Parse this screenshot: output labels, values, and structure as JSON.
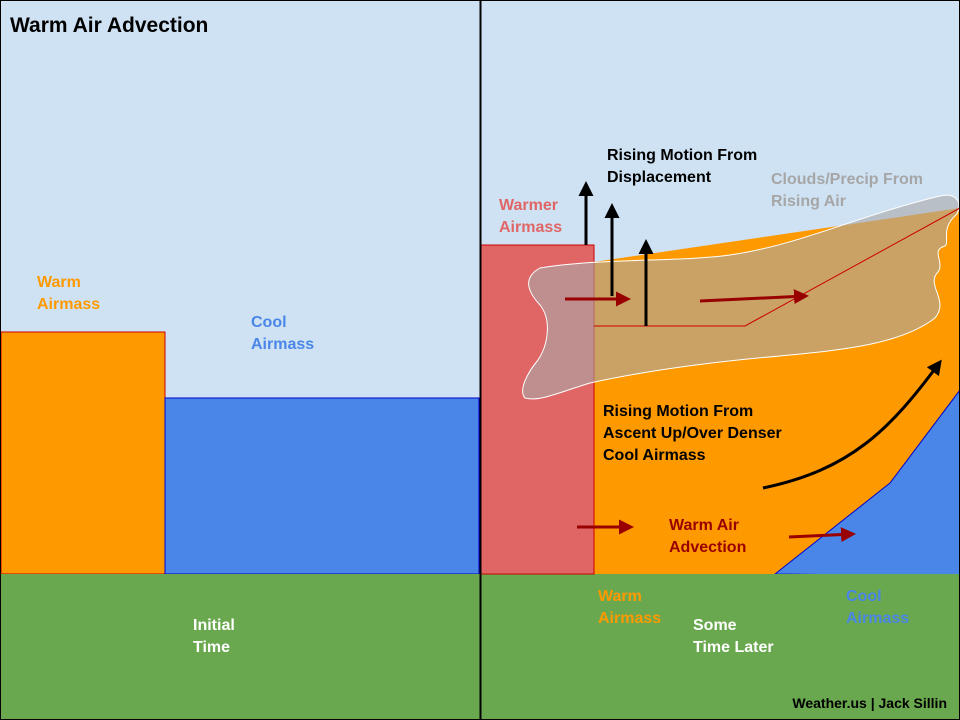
{
  "title": "Warm Air Advection",
  "panels": {
    "initial": {
      "warm_airmass": [
        "Warm",
        "Airmass"
      ],
      "cool_airmass": [
        "Cool",
        "Airmass"
      ],
      "time_label": [
        "Initial",
        "Time"
      ]
    },
    "later": {
      "warmer_airmass": [
        "Warmer",
        "Airmass"
      ],
      "rising_displacement": [
        "Rising Motion From",
        "Displacement"
      ],
      "clouds_precip": [
        "Clouds/Precip From",
        "Rising Air"
      ],
      "rising_ascent": [
        "Rising Motion From",
        "Ascent Up/Over Denser",
        "Cool Airmass"
      ],
      "advection": [
        "Warm Air",
        "Advection"
      ],
      "warm_airmass": [
        "Warm",
        "Airmass"
      ],
      "cool_airmass": [
        "Cool",
        "Airmass"
      ],
      "time_label": [
        "Some",
        "Time Later"
      ]
    }
  },
  "credit": "Weather.us | Jack Sillin",
  "colors": {
    "sky": "#cfe2f3",
    "ground": "#6aa84f",
    "warm": "#ff9900",
    "cool": "#4a86e8",
    "warmer": "#e06666",
    "cloud": "#b7b7b7",
    "advection_arrow": "#990000",
    "ascent_arrow": "#000000"
  }
}
